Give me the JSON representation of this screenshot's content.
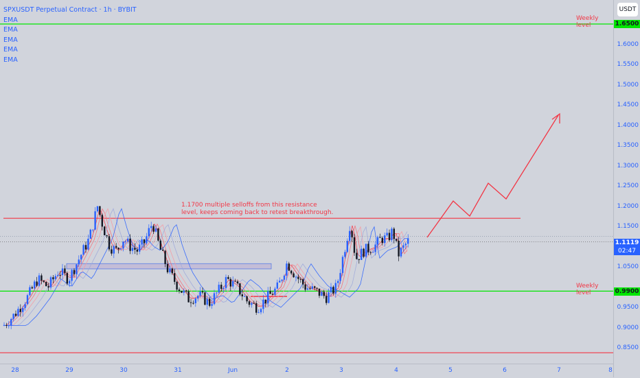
{
  "header": {
    "symbol_title": "SPXUSDT Perpetual Contract · 1h · BYBIT",
    "indicators": [
      "EMA",
      "EMA",
      "EMA",
      "EMA",
      "EMA"
    ]
  },
  "price_axis": {
    "currency_button": "USDT",
    "ticks": [
      "1.6000",
      "1.5500",
      "1.5000",
      "1.4500",
      "1.4000",
      "1.3500",
      "1.3000",
      "1.2500",
      "1.2000",
      "1.1500",
      "1.0500",
      "0.9500",
      "0.9000",
      "0.8500"
    ],
    "badges": {
      "weekly_top": "1.6500",
      "current_price": "1.1119",
      "countdown": "02:47",
      "weekly_bottom": "0.9900"
    }
  },
  "time_axis": {
    "ticks": [
      "28",
      "29",
      "30",
      "31",
      "Jun",
      "2",
      "3",
      "4",
      "5",
      "6",
      "7",
      "8"
    ]
  },
  "annotations": {
    "weekly_top_label": "Weekly level",
    "weekly_bottom_label": "Weekly level",
    "resistance_line1": "1.1700 multiple selloffs from this resistance",
    "resistance_line2": "level, keeps coming back to retest breakthrough."
  },
  "colors": {
    "background": "#d1d4dc",
    "accent_blue": "#2962ff",
    "candle_up": "#2962ff",
    "candle_down": "#131722",
    "weekly_green": "#00e600",
    "resistance_red": "#f23645"
  }
}
